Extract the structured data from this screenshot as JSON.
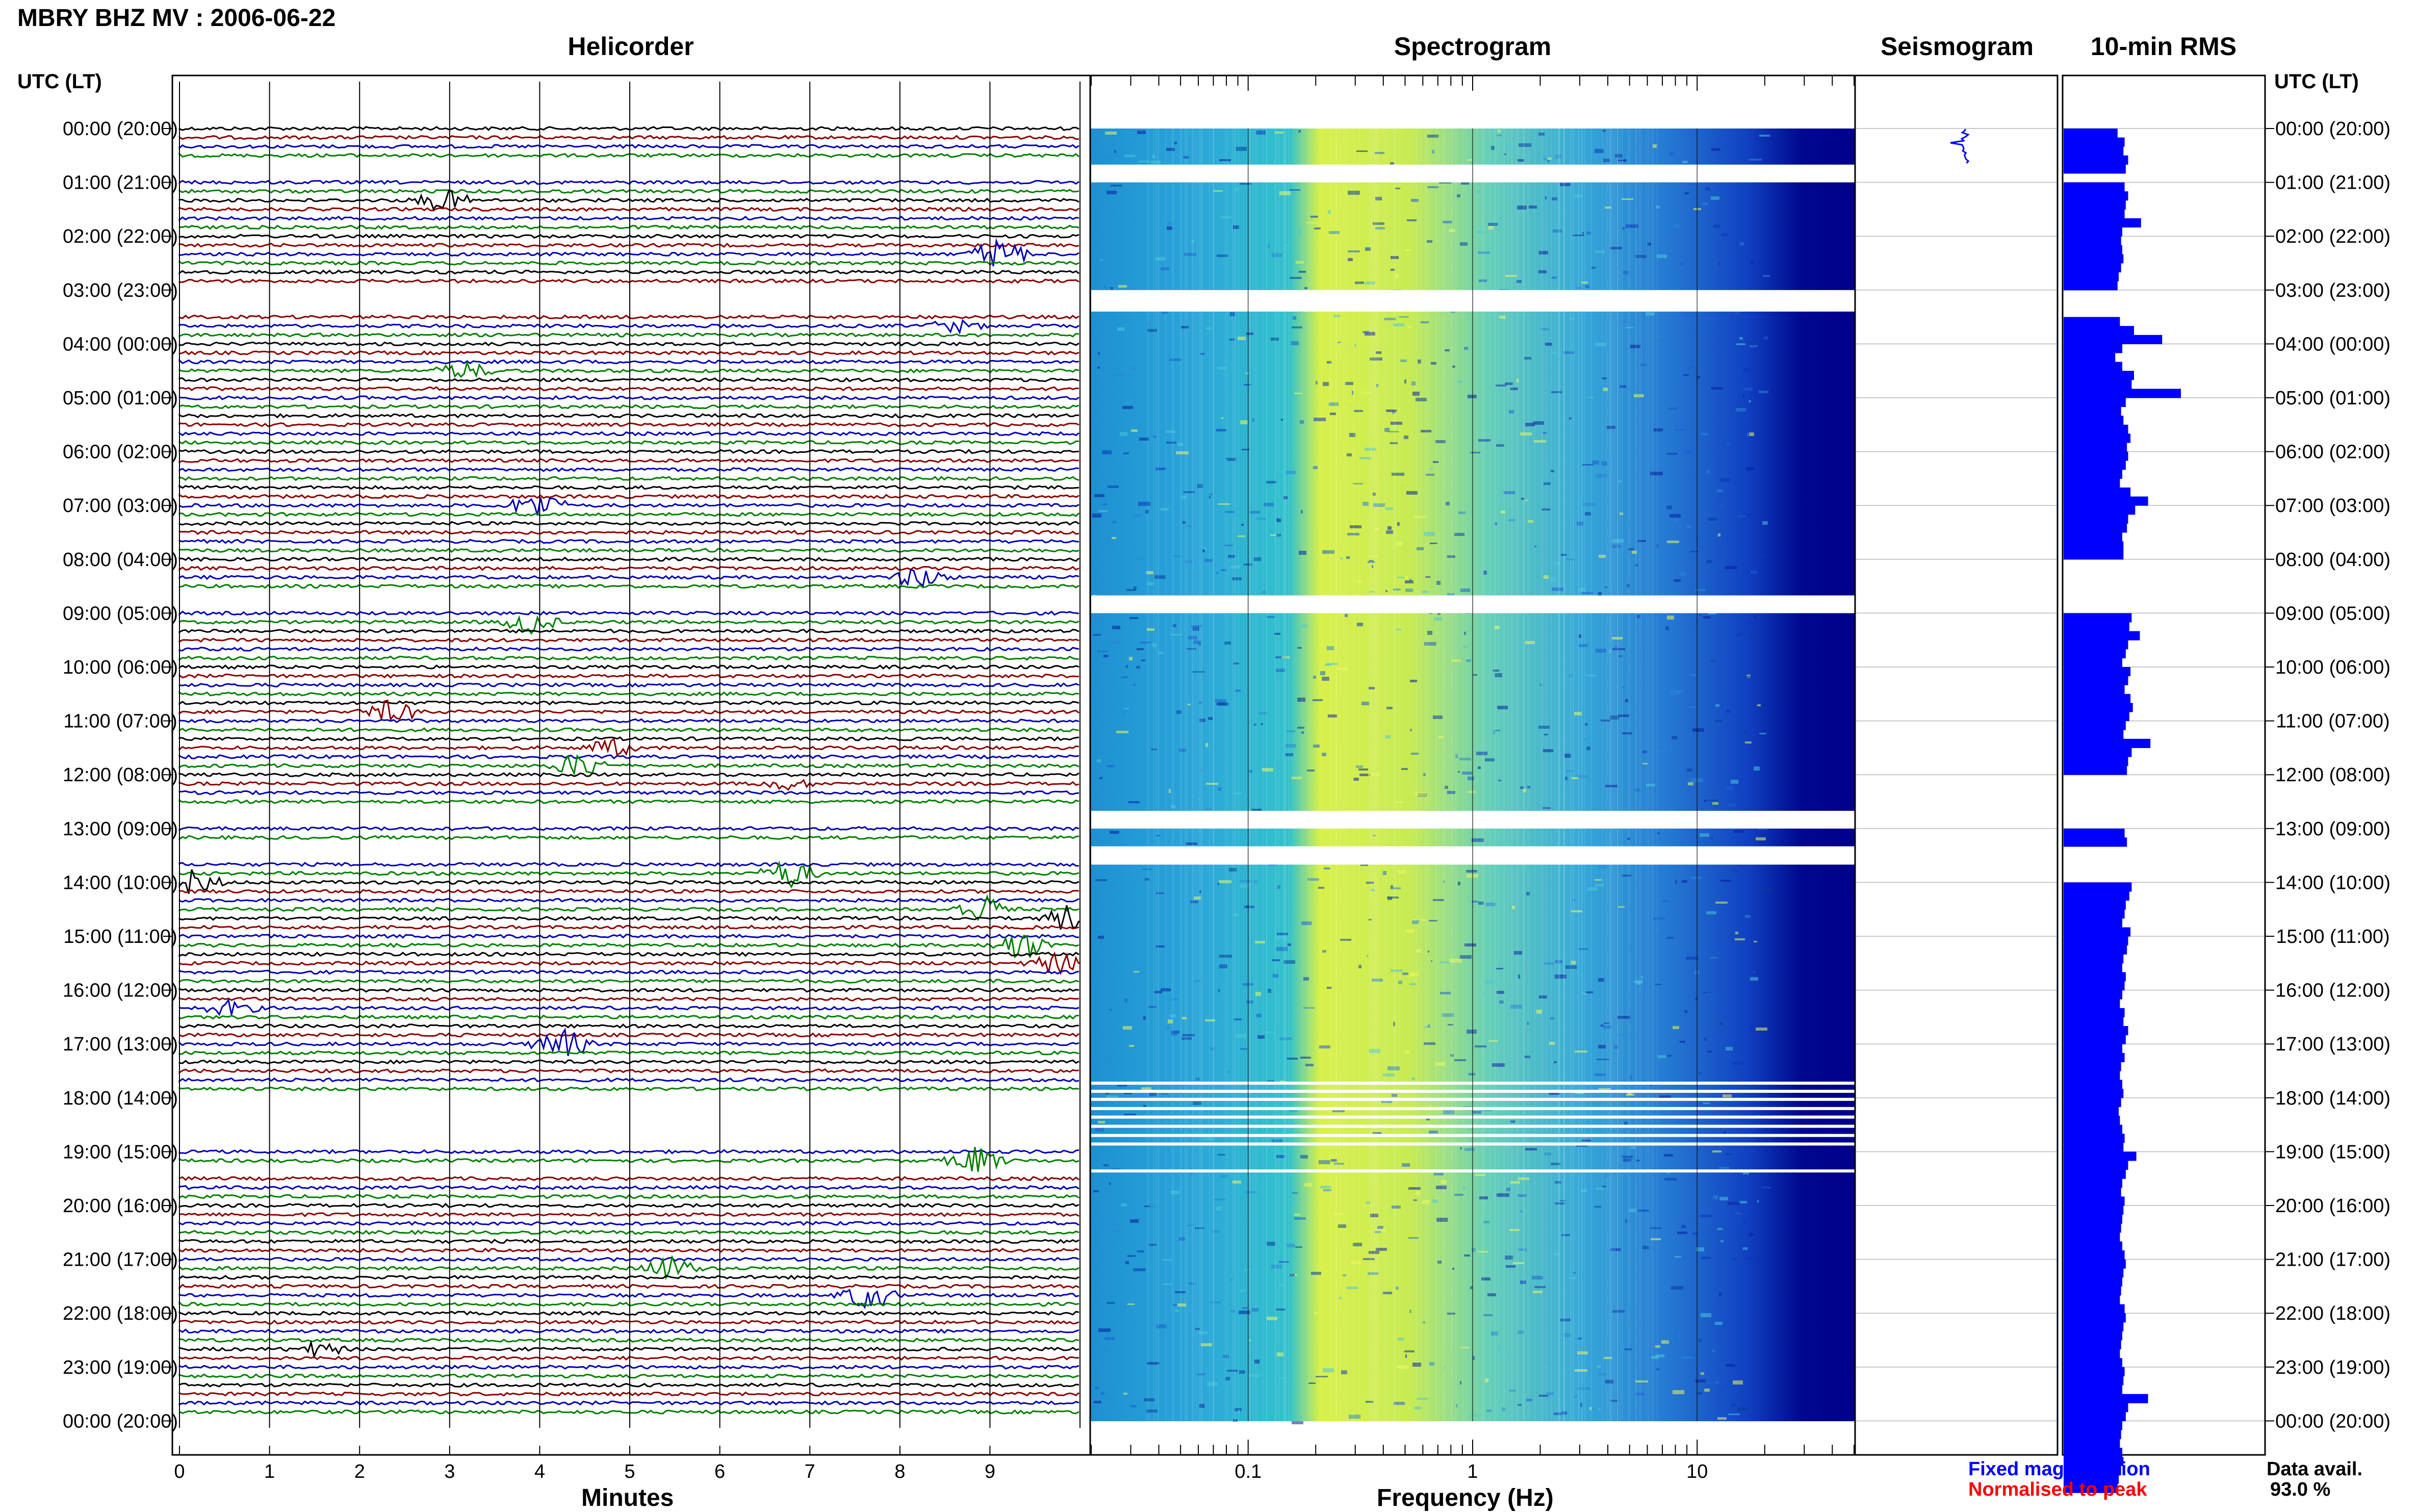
{
  "title": "MBRY BHZ MV : 2006-06-22",
  "panels": {
    "helicorder": "Helicorder",
    "spectrogram": "Spectrogram",
    "seismogram": "Seismogram",
    "rms": "10-min RMS"
  },
  "time_axis_label": "UTC (LT)",
  "x_labels": {
    "helicorder": "Minutes",
    "spectrogram": "Frequency (Hz)"
  },
  "legend": {
    "fixed": "Fixed magnification",
    "normalised": "Normalised to peak",
    "fixed_color": "#0000ff",
    "normalised_color": "#ff0000"
  },
  "data_availability": {
    "label": "Data avail.",
    "value": "93.0 %"
  },
  "colors": {
    "trace_cycle": [
      "#000000",
      "#8b0000",
      "#0000b4",
      "#008000"
    ],
    "rms_bar": "#0000ff",
    "spectrogram_low": "#00008b",
    "spectrogram_high": "#ffff32"
  },
  "chart_data": {
    "type": "heatmap",
    "time_ticks": [
      "00:00 (20:00)",
      "01:00 (21:00)",
      "02:00 (22:00)",
      "03:00 (23:00)",
      "04:00 (00:00)",
      "05:00 (01:00)",
      "06:00 (02:00)",
      "07:00 (03:00)",
      "08:00 (04:00)",
      "09:00 (05:00)",
      "10:00 (06:00)",
      "11:00 (07:00)",
      "12:00 (08:00)",
      "13:00 (09:00)",
      "14:00 (10:00)",
      "15:00 (11:00)",
      "16:00 (12:00)",
      "17:00 (13:00)",
      "18:00 (14:00)",
      "19:00 (15:00)",
      "20:00 (16:00)",
      "21:00 (17:00)",
      "22:00 (18:00)",
      "23:00 (19:00)",
      "00:00 (20:00)"
    ],
    "helicorder_x_ticks": [
      "0",
      "1",
      "2",
      "3",
      "4",
      "5",
      "6",
      "7",
      "8",
      "9"
    ],
    "helicorder_xlim": [
      0,
      10
    ],
    "spectrogram_x_ticks": [
      "0.1",
      "1",
      "10"
    ],
    "spectrogram_xlim_hz": [
      0.02,
      50
    ],
    "spectrogram_xscale": "log",
    "data_gaps_utc_hours": [
      [
        0.67,
        1.0
      ],
      [
        3.0,
        3.4
      ],
      [
        8.67,
        9.0
      ],
      [
        12.67,
        13.0
      ],
      [
        13.33,
        13.67
      ],
      [
        17.7,
        17.73
      ],
      [
        17.85,
        17.88
      ],
      [
        18.0,
        18.02
      ],
      [
        18.17,
        18.2
      ],
      [
        18.33,
        18.35
      ],
      [
        18.5,
        18.53
      ],
      [
        18.67,
        18.69
      ],
      [
        18.83,
        18.86
      ],
      [
        19.33,
        19.36
      ]
    ],
    "rms_series": {
      "name": "10-min RMS",
      "values": [
        46,
        52,
        51,
        55,
        53,
        0,
        52,
        55,
        53,
        52,
        66,
        50,
        49,
        50,
        51,
        49,
        47,
        46,
        0,
        0,
        0,
        48,
        60,
        84,
        50,
        44,
        50,
        60,
        58,
        100,
        53,
        49,
        51,
        55,
        57,
        54,
        55,
        53,
        50,
        48,
        57,
        72,
        61,
        55,
        54,
        50,
        51,
        51,
        0,
        0,
        0,
        0,
        0,
        0,
        58,
        56,
        65,
        55,
        53,
        50,
        57,
        55,
        52,
        57,
        59,
        56,
        53,
        51,
        74,
        58,
        55,
        54,
        0,
        0,
        0,
        0,
        0,
        0,
        52,
        54,
        0,
        0,
        0,
        0,
        58,
        56,
        53,
        52,
        50,
        57,
        55,
        54,
        51,
        50,
        53,
        52,
        50,
        48,
        52,
        51,
        55,
        53,
        50,
        52,
        49,
        48,
        50,
        51,
        49,
        47,
        48,
        50,
        52,
        51,
        62,
        55,
        53,
        50,
        49,
        52,
        51,
        50,
        49,
        48,
        50,
        52,
        53,
        51,
        50,
        49,
        48,
        52,
        53,
        51,
        50,
        49,
        48,
        50,
        52,
        51,
        50,
        72,
        55,
        53,
        50,
        49,
        48,
        50,
        51,
        49,
        47,
        46
      ]
    }
  }
}
